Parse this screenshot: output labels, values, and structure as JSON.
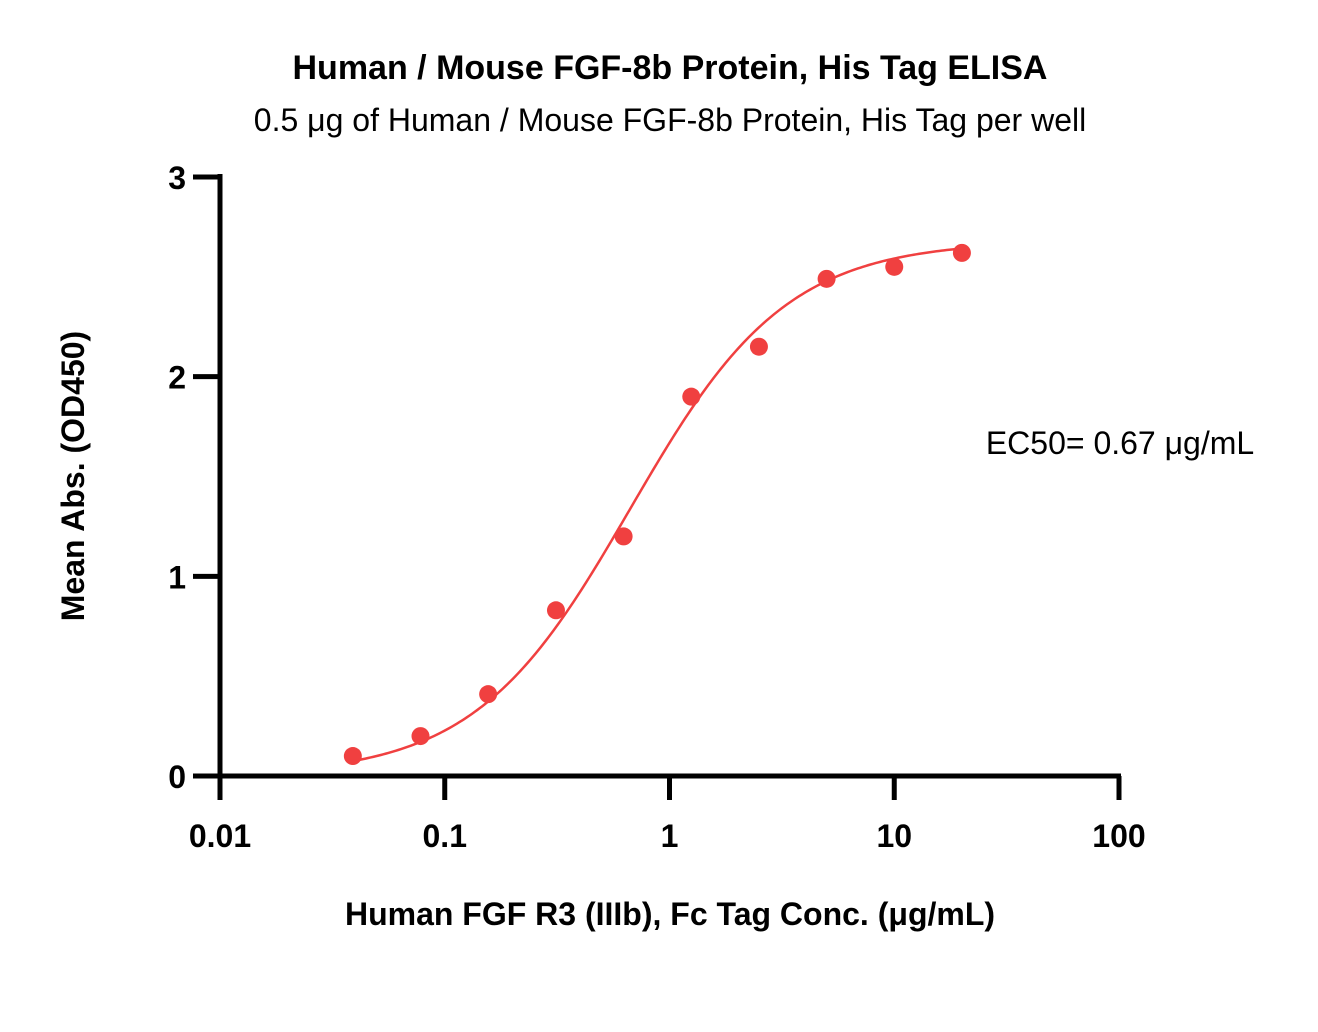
{
  "chart_data": {
    "type": "scatter",
    "title": "Human / Mouse FGF-8b Protein, His Tag ELISA",
    "subtitle": "0.5 μg of Human / Mouse FGF-8b Protein, His Tag per well",
    "xlabel": "Human FGF R3 (IIIb), Fc Tag Conc. (μg/mL)",
    "ylabel": "Mean Abs. (OD450)",
    "x_scale": "log",
    "xlim": [
      0.01,
      100
    ],
    "ylim": [
      0,
      3
    ],
    "x_ticks": [
      0.01,
      0.1,
      1,
      10,
      100
    ],
    "x_tick_labels": [
      "0.01",
      "0.1",
      "1",
      "10",
      "100"
    ],
    "y_ticks": [
      0,
      1,
      2,
      3
    ],
    "y_tick_labels": [
      "0",
      "1",
      "2",
      "3"
    ],
    "grid": false,
    "series": [
      {
        "color": "#f04040",
        "x": [
          0.039,
          0.078,
          0.156,
          0.3125,
          0.625,
          1.25,
          2.5,
          5,
          10,
          20
        ],
        "y": [
          0.1,
          0.2,
          0.41,
          0.83,
          1.2,
          1.9,
          2.15,
          2.49,
          2.55,
          2.62
        ]
      }
    ],
    "fit_curve": {
      "model": "4PL",
      "bottom": 0.0,
      "top": 2.68,
      "ec50": 0.67,
      "hill": 1.25,
      "color": "#f04040"
    },
    "annotations": [
      {
        "text": "EC50= 0.67 μg/mL"
      }
    ]
  }
}
